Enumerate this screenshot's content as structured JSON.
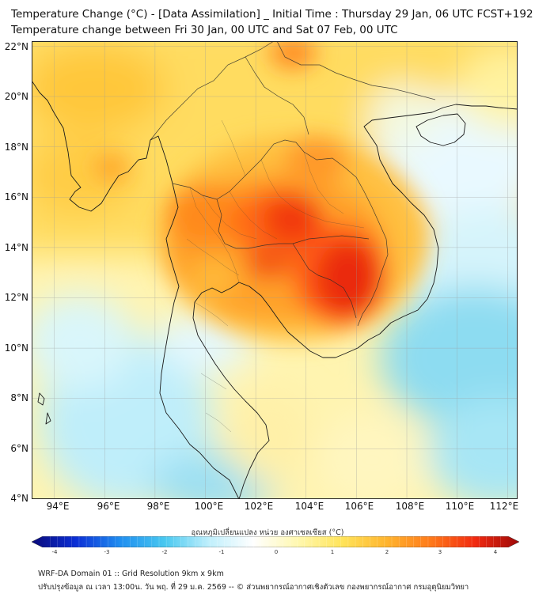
{
  "header": {
    "title_line1": "Temperature Change (°C) - [Data Assimilation] _ Initial Time : Thursday 29 Jan, 06 UTC FCST+192",
    "title_line2": "Temperature change between Fri 30 Jan, 00 UTC and Sat 07 Feb, 00 UTC"
  },
  "map": {
    "lat_labels": [
      "22°N",
      "20°N",
      "18°N",
      "16°N",
      "14°N",
      "12°N",
      "10°N",
      "8°N",
      "6°N",
      "4°N"
    ],
    "lon_labels": [
      "94°E",
      "96°E",
      "98°E",
      "100°E",
      "102°E",
      "104°E",
      "106°E",
      "108°E",
      "110°E",
      "112°E"
    ],
    "lat_range": [
      4,
      22.2
    ],
    "lon_range": [
      93.1,
      112.4
    ],
    "grid": true
  },
  "colorbar": {
    "title": "อุณหภูมิเปลี่ยนแปลง หน่วย องศาเซลเซียส (°C)",
    "range": [
      -4,
      4
    ],
    "ticks": [
      "-4",
      "-3",
      "-2",
      "-1",
      "0",
      "1",
      "2",
      "3",
      "4"
    ],
    "colors": [
      "#0a0a7a",
      "#0b2fd6",
      "#1f8ef0",
      "#48c8f0",
      "#bfeffc",
      "#ffffff",
      "#fff8b0",
      "#ffe45a",
      "#ffb52e",
      "#ff7a1a",
      "#f22a10",
      "#9e0808"
    ]
  },
  "footer": {
    "line1": "WRF-DA Domain 01 :: Grid Resolution 9km x 9km",
    "line2": "ปรับปรุงข้อมูล ณ เวลา 13:00น. วัน พฤ. ที่ 29 ม.ค. 2569 -- © ส่วนพยากรณ์อากาศเชิงตัวเลข กองพยากรณ์อากาศ กรมอุตุนิยมวิทยา"
  }
}
